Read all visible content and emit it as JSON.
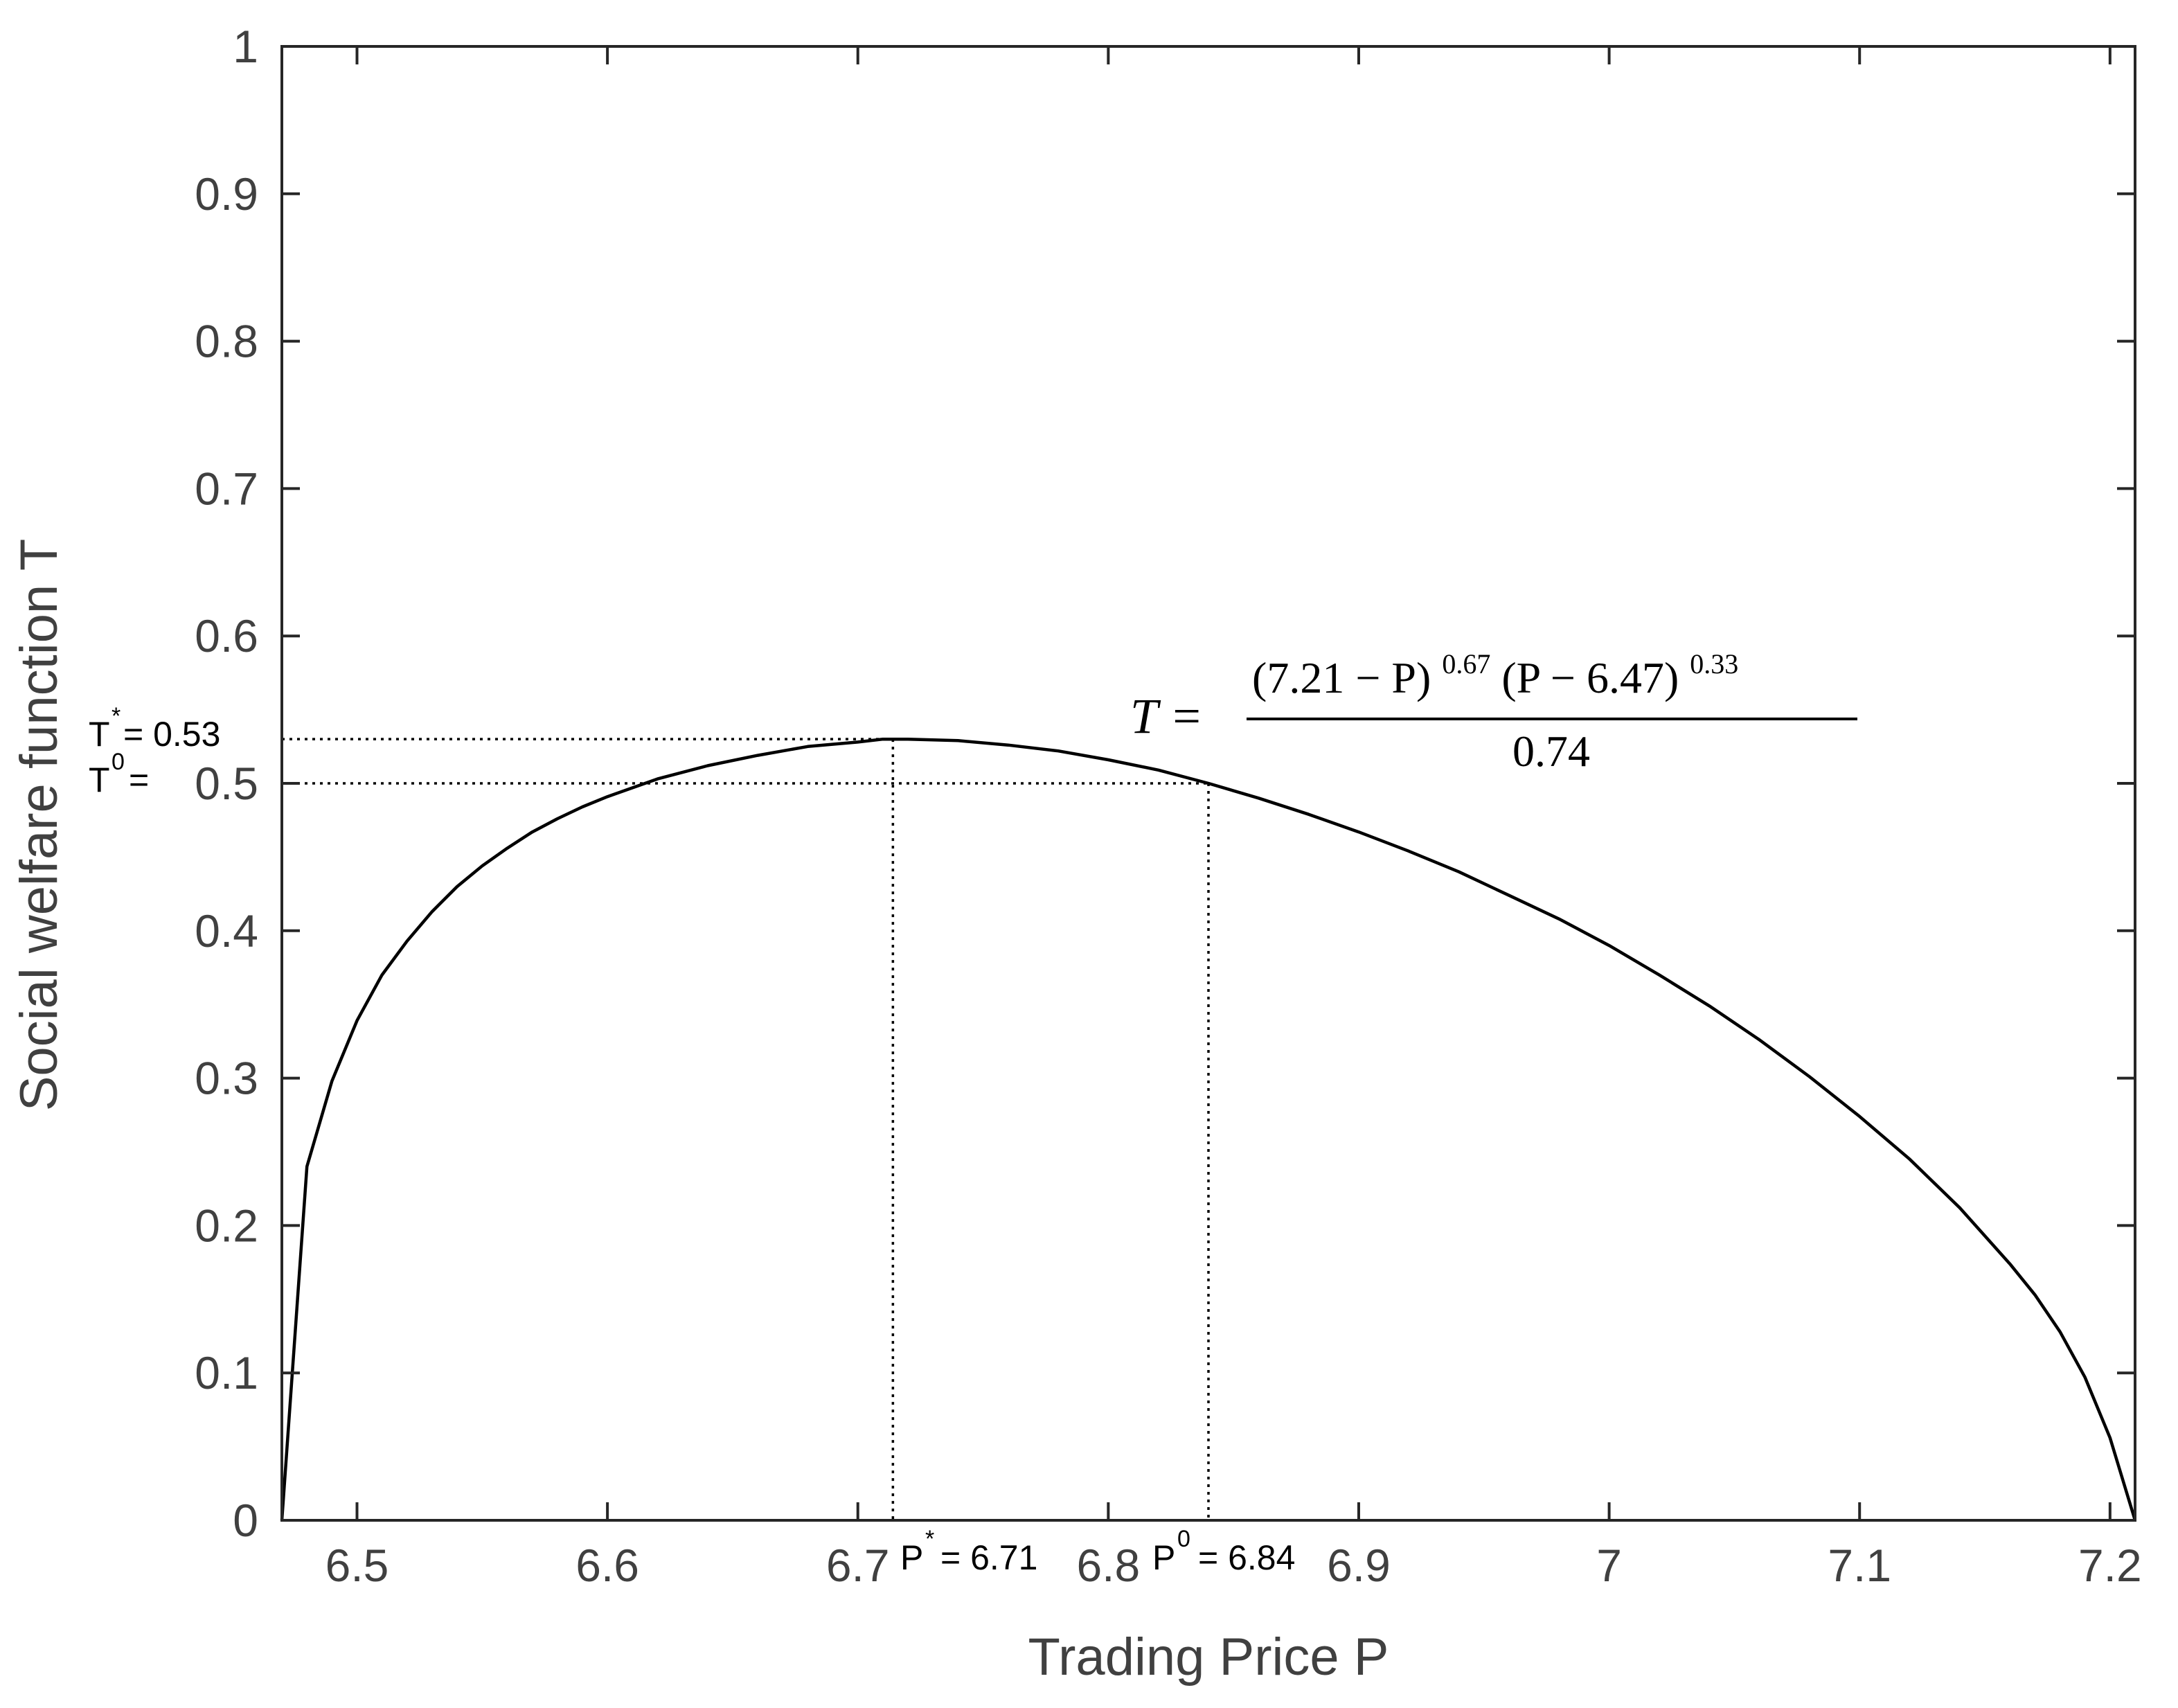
{
  "chart_data": {
    "type": "line",
    "title": "",
    "xlabel": "Trading Price P",
    "ylabel": "Social welfare function T",
    "xlim": [
      6.47,
      7.21
    ],
    "ylim": [
      0,
      1
    ],
    "grid": false,
    "x_ticks": [
      "6.5",
      "6.6",
      "6.7",
      "6.8",
      "6.9",
      "7",
      "7.1",
      "7.2"
    ],
    "x_tick_values": [
      6.5,
      6.6,
      6.7,
      6.8,
      6.9,
      7.0,
      7.1,
      7.2
    ],
    "y_ticks": [
      "0",
      "0.1",
      "0.2",
      "0.3",
      "0.4",
      "0.5",
      "0.6",
      "0.7",
      "0.8",
      "0.9",
      "1"
    ],
    "y_tick_values": [
      0,
      0.1,
      0.2,
      0.3,
      0.4,
      0.5,
      0.6,
      0.7,
      0.8,
      0.9,
      1.0
    ],
    "series": [
      {
        "x": [
          6.47,
          6.48,
          6.49,
          6.5,
          6.51,
          6.52,
          6.53,
          6.54,
          6.55,
          6.56,
          6.57,
          6.58,
          6.59,
          6.6,
          6.62,
          6.64,
          6.66,
          6.68,
          6.7,
          6.71,
          6.72,
          6.74,
          6.76,
          6.78,
          6.8,
          6.82,
          6.84,
          6.86,
          6.88,
          6.9,
          6.92,
          6.94,
          6.96,
          6.98,
          7.0,
          7.02,
          7.04,
          7.06,
          7.08,
          7.1,
          7.12,
          7.14,
          7.16,
          7.17,
          7.18,
          7.19,
          7.2,
          7.21
        ],
        "y": [
          0.0,
          0.24,
          0.298,
          0.339,
          0.37,
          0.393,
          0.413,
          0.43,
          0.444,
          0.456,
          0.467,
          0.476,
          0.484,
          0.491,
          0.503,
          0.512,
          0.519,
          0.525,
          0.528,
          0.53,
          0.53,
          0.529,
          0.526,
          0.522,
          0.516,
          0.509,
          0.5,
          0.49,
          0.479,
          0.467,
          0.454,
          0.44,
          0.424,
          0.408,
          0.39,
          0.37,
          0.349,
          0.326,
          0.301,
          0.274,
          0.245,
          0.212,
          0.174,
          0.153,
          0.128,
          0.097,
          0.056,
          0.0
        ]
      }
    ],
    "reference_points": [
      {
        "p": 6.714,
        "t": 0.53
      },
      {
        "p": 6.84,
        "t": 0.5
      }
    ],
    "annotations": {
      "t_star": {
        "base": "T",
        "sup": "*",
        "text": "= 0.53"
      },
      "t_zero": {
        "base": "T",
        "sup": "0",
        "text": "="
      },
      "p_star": {
        "base": "P",
        "sup": "*",
        "text": "= 6.71"
      },
      "p_zero": {
        "base": "P",
        "sup": "0",
        "text": "= 6.84"
      }
    },
    "formula": {
      "lhs": "T =",
      "numerator_a": "(7.21 − P)",
      "exp_a": "0.67",
      "numerator_b": "(P − 6.47)",
      "exp_b": "0.33",
      "denominator": "0.74"
    }
  }
}
